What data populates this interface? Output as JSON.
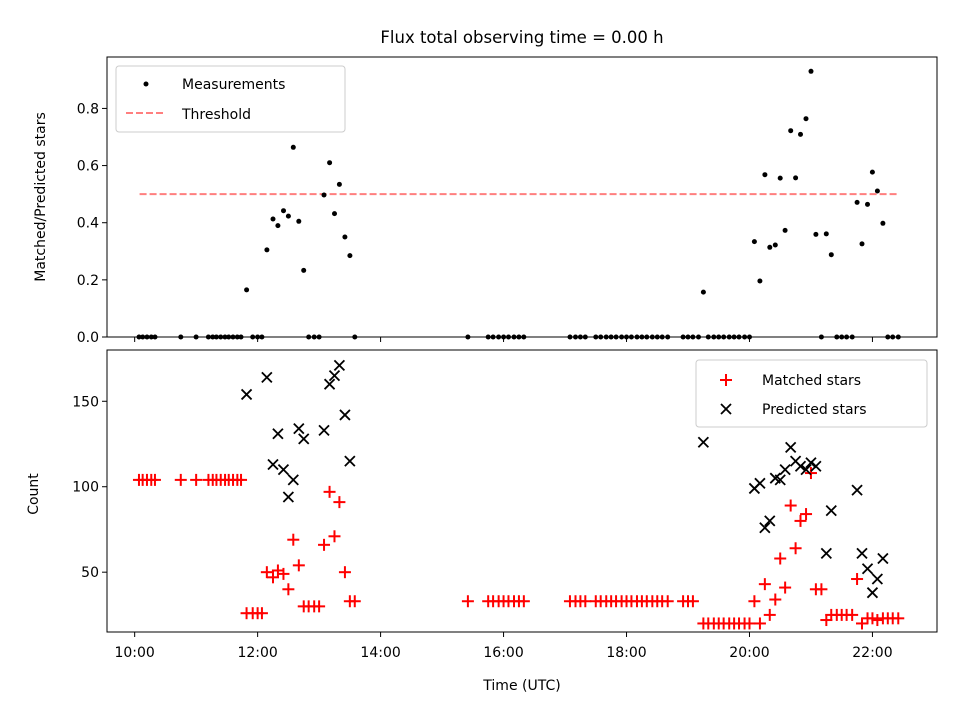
{
  "chart_data": [
    {
      "type": "scatter",
      "title": "Flux total observing time = 0.00 h",
      "xlabel": "",
      "ylabel": "Matched/Predicted stars",
      "xlim": [
        9.55,
        23.05
      ],
      "ylim": [
        0,
        0.98
      ],
      "x_ticks": [
        10,
        12,
        14,
        16,
        18,
        20,
        22
      ],
      "x_tick_labels_shown": false,
      "y_ticks": [
        0.0,
        0.2,
        0.4,
        0.6,
        0.8
      ],
      "y_tick_labels": [
        "0.0",
        "0.2",
        "0.4",
        "0.6",
        "0.8"
      ],
      "legend_position": "top-left",
      "colors": {
        "measurements": "#000000",
        "threshold": "#ff7f7f"
      },
      "series": [
        {
          "name": "Measurements",
          "marker": "dot",
          "color": "#000000",
          "points": [
            [
              10.07,
              0
            ],
            [
              10.13,
              0
            ],
            [
              10.2,
              0
            ],
            [
              10.27,
              0
            ],
            [
              10.33,
              0
            ],
            [
              10.75,
              0
            ],
            [
              11.0,
              0
            ],
            [
              11.2,
              0
            ],
            [
              11.27,
              0
            ],
            [
              11.33,
              0
            ],
            [
              11.4,
              0
            ],
            [
              11.47,
              0
            ],
            [
              11.53,
              0
            ],
            [
              11.6,
              0
            ],
            [
              11.67,
              0
            ],
            [
              11.73,
              0
            ],
            [
              11.82,
              0.165
            ],
            [
              11.92,
              0
            ],
            [
              12.0,
              0
            ],
            [
              12.07,
              0
            ],
            [
              12.15,
              0.305
            ],
            [
              12.25,
              0.413
            ],
            [
              12.33,
              0.39
            ],
            [
              12.42,
              0.442
            ],
            [
              12.5,
              0.423
            ],
            [
              12.58,
              0.664
            ],
            [
              12.67,
              0.405
            ],
            [
              12.75,
              0.233
            ],
            [
              12.83,
              0
            ],
            [
              12.92,
              0
            ],
            [
              13.0,
              0
            ],
            [
              13.08,
              0.497
            ],
            [
              13.17,
              0.61
            ],
            [
              13.25,
              0.432
            ],
            [
              13.33,
              0.534
            ],
            [
              13.42,
              0.35
            ],
            [
              13.5,
              0.285
            ],
            [
              13.58,
              0
            ],
            [
              15.42,
              0
            ],
            [
              15.75,
              0
            ],
            [
              15.83,
              0
            ],
            [
              15.92,
              0
            ],
            [
              16.0,
              0
            ],
            [
              16.08,
              0
            ],
            [
              16.17,
              0
            ],
            [
              16.25,
              0
            ],
            [
              16.33,
              0
            ],
            [
              17.08,
              0
            ],
            [
              17.17,
              0
            ],
            [
              17.25,
              0
            ],
            [
              17.33,
              0
            ],
            [
              17.5,
              0
            ],
            [
              17.58,
              0
            ],
            [
              17.67,
              0
            ],
            [
              17.75,
              0
            ],
            [
              17.83,
              0
            ],
            [
              17.92,
              0
            ],
            [
              18.0,
              0
            ],
            [
              18.08,
              0
            ],
            [
              18.17,
              0
            ],
            [
              18.25,
              0
            ],
            [
              18.33,
              0
            ],
            [
              18.42,
              0
            ],
            [
              18.5,
              0
            ],
            [
              18.58,
              0
            ],
            [
              18.67,
              0
            ],
            [
              18.92,
              0
            ],
            [
              19.0,
              0
            ],
            [
              19.08,
              0
            ],
            [
              19.25,
              0.157
            ],
            [
              19.17,
              0
            ],
            [
              19.33,
              0
            ],
            [
              19.42,
              0
            ],
            [
              19.5,
              0
            ],
            [
              19.58,
              0
            ],
            [
              19.67,
              0
            ],
            [
              19.75,
              0
            ],
            [
              19.83,
              0
            ],
            [
              19.92,
              0
            ],
            [
              20.0,
              0
            ],
            [
              20.08,
              0.334
            ],
            [
              20.17,
              0.196
            ],
            [
              20.25,
              0.568
            ],
            [
              20.33,
              0.314
            ],
            [
              20.42,
              0.322
            ],
            [
              20.5,
              0.556
            ],
            [
              20.58,
              0.373
            ],
            [
              20.67,
              0.722
            ],
            [
              20.75,
              0.557
            ],
            [
              20.83,
              0.709
            ],
            [
              20.92,
              0.764
            ],
            [
              21.0,
              0.93
            ],
            [
              21.08,
              0.359
            ],
            [
              21.17,
              0
            ],
            [
              21.25,
              0.361
            ],
            [
              21.33,
              0.288
            ],
            [
              21.42,
              0
            ],
            [
              21.5,
              0
            ],
            [
              21.58,
              0
            ],
            [
              21.67,
              0
            ],
            [
              21.75,
              0.471
            ],
            [
              21.83,
              0.326
            ],
            [
              21.92,
              0.464
            ],
            [
              22.0,
              0.577
            ],
            [
              22.08,
              0.511
            ],
            [
              22.17,
              0.398
            ],
            [
              22.25,
              0
            ],
            [
              22.33,
              0
            ],
            [
              22.42,
              0
            ]
          ]
        },
        {
          "name": "Threshold",
          "style": "dashed",
          "color": "#ff7f7f",
          "x": [
            10.08,
            22.42
          ],
          "y": [
            0.5,
            0.5
          ]
        }
      ]
    },
    {
      "type": "scatter",
      "title": "",
      "xlabel": "Time (UTC)",
      "ylabel": "Count",
      "xlim": [
        9.55,
        23.05
      ],
      "ylim": [
        15,
        180
      ],
      "x_ticks": [
        10,
        12,
        14,
        16,
        18,
        20,
        22
      ],
      "x_tick_labels": [
        "10:00",
        "12:00",
        "14:00",
        "16:00",
        "18:00",
        "20:00",
        "22:00"
      ],
      "y_ticks": [
        50,
        100,
        150
      ],
      "y_tick_labels": [
        "50",
        "100",
        "150"
      ],
      "legend_position": "top-right",
      "colors": {
        "matched": "#ff0000",
        "predicted": "#000000"
      },
      "series": [
        {
          "name": "Matched stars",
          "marker": "plus",
          "color": "#ff0000",
          "points": [
            [
              10.07,
              104
            ],
            [
              10.13,
              104
            ],
            [
              10.2,
              104
            ],
            [
              10.27,
              104
            ],
            [
              10.33,
              104
            ],
            [
              10.75,
              104
            ],
            [
              11.0,
              104
            ],
            [
              11.2,
              104
            ],
            [
              11.27,
              104
            ],
            [
              11.33,
              104
            ],
            [
              11.4,
              104
            ],
            [
              11.47,
              104
            ],
            [
              11.53,
              104
            ],
            [
              11.6,
              104
            ],
            [
              11.67,
              104
            ],
            [
              11.73,
              104
            ],
            [
              11.82,
              26
            ],
            [
              11.92,
              26
            ],
            [
              12.0,
              26
            ],
            [
              12.07,
              26
            ],
            [
              12.15,
              50
            ],
            [
              12.25,
              47
            ],
            [
              12.33,
              51
            ],
            [
              12.42,
              49
            ],
            [
              12.5,
              40
            ],
            [
              12.58,
              69
            ],
            [
              12.67,
              54
            ],
            [
              12.75,
              30
            ],
            [
              12.83,
              30
            ],
            [
              12.92,
              30
            ],
            [
              13.0,
              30
            ],
            [
              13.08,
              66
            ],
            [
              13.17,
              97
            ],
            [
              13.25,
              71
            ],
            [
              13.33,
              91
            ],
            [
              13.42,
              50
            ],
            [
              13.5,
              33
            ],
            [
              13.58,
              33
            ],
            [
              15.42,
              33
            ],
            [
              15.75,
              33
            ],
            [
              15.83,
              33
            ],
            [
              15.92,
              33
            ],
            [
              16.0,
              33
            ],
            [
              16.08,
              33
            ],
            [
              16.17,
              33
            ],
            [
              16.25,
              33
            ],
            [
              16.33,
              33
            ],
            [
              17.08,
              33
            ],
            [
              17.17,
              33
            ],
            [
              17.25,
              33
            ],
            [
              17.33,
              33
            ],
            [
              17.5,
              33
            ],
            [
              17.58,
              33
            ],
            [
              17.67,
              33
            ],
            [
              17.75,
              33
            ],
            [
              17.83,
              33
            ],
            [
              17.92,
              33
            ],
            [
              18.0,
              33
            ],
            [
              18.08,
              33
            ],
            [
              18.17,
              33
            ],
            [
              18.25,
              33
            ],
            [
              18.33,
              33
            ],
            [
              18.42,
              33
            ],
            [
              18.5,
              33
            ],
            [
              18.58,
              33
            ],
            [
              18.67,
              33
            ],
            [
              18.92,
              33
            ],
            [
              19.0,
              33
            ],
            [
              19.08,
              33
            ],
            [
              19.25,
              20
            ],
            [
              19.33,
              20
            ],
            [
              19.42,
              20
            ],
            [
              19.5,
              20
            ],
            [
              19.58,
              20
            ],
            [
              19.67,
              20
            ],
            [
              19.75,
              20
            ],
            [
              19.83,
              20
            ],
            [
              19.92,
              20
            ],
            [
              20.0,
              20
            ],
            [
              20.08,
              33
            ],
            [
              20.17,
              20
            ],
            [
              20.25,
              43
            ],
            [
              20.33,
              25
            ],
            [
              20.42,
              34
            ],
            [
              20.5,
              58
            ],
            [
              20.58,
              41
            ],
            [
              20.67,
              89
            ],
            [
              20.75,
              64
            ],
            [
              20.83,
              80
            ],
            [
              20.92,
              84
            ],
            [
              21.0,
              108
            ],
            [
              21.08,
              40
            ],
            [
              21.17,
              40
            ],
            [
              21.25,
              22
            ],
            [
              21.33,
              25
            ],
            [
              21.42,
              25
            ],
            [
              21.5,
              25
            ],
            [
              21.58,
              25
            ],
            [
              21.67,
              25
            ],
            [
              21.75,
              46
            ],
            [
              21.83,
              20
            ],
            [
              21.92,
              23
            ],
            [
              22.0,
              23
            ],
            [
              22.08,
              22
            ],
            [
              22.17,
              23
            ],
            [
              22.25,
              23
            ],
            [
              22.33,
              23
            ],
            [
              22.42,
              23
            ]
          ]
        },
        {
          "name": "Predicted stars",
          "marker": "x",
          "color": "#000000",
          "points": [
            [
              11.82,
              154
            ],
            [
              12.15,
              164
            ],
            [
              12.25,
              113
            ],
            [
              12.33,
              131
            ],
            [
              12.42,
              110
            ],
            [
              12.5,
              94
            ],
            [
              12.58,
              104
            ],
            [
              12.67,
              134
            ],
            [
              12.75,
              128
            ],
            [
              13.08,
              133
            ],
            [
              13.17,
              160
            ],
            [
              13.25,
              165
            ],
            [
              13.33,
              171
            ],
            [
              13.42,
              142
            ],
            [
              13.5,
              115
            ],
            [
              19.25,
              126
            ],
            [
              20.08,
              99
            ],
            [
              20.17,
              102
            ],
            [
              20.25,
              76
            ],
            [
              20.33,
              80
            ],
            [
              20.42,
              105
            ],
            [
              20.5,
              104
            ],
            [
              20.58,
              110
            ],
            [
              20.67,
              123
            ],
            [
              20.75,
              115
            ],
            [
              20.83,
              112
            ],
            [
              20.92,
              110
            ],
            [
              21.0,
              114
            ],
            [
              21.08,
              112
            ],
            [
              21.25,
              61
            ],
            [
              21.33,
              86
            ],
            [
              21.75,
              98
            ],
            [
              21.83,
              61
            ],
            [
              21.92,
              52
            ],
            [
              22.0,
              38
            ],
            [
              22.08,
              46
            ],
            [
              22.17,
              58
            ]
          ]
        }
      ]
    }
  ]
}
